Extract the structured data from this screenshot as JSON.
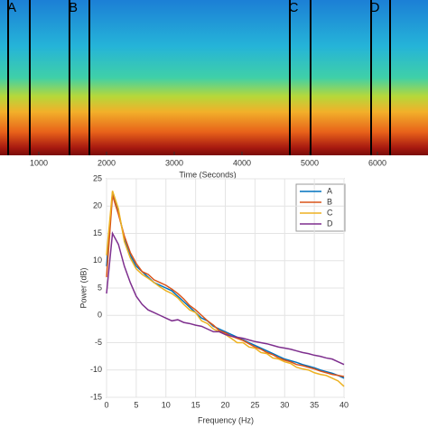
{
  "chart_data": [
    {
      "type": "spectrogram",
      "xlabel": "Time (Seconds)",
      "xlim": [
        427,
        6747
      ],
      "xticks": [
        1000,
        2000,
        3000,
        4000,
        5000,
        6000
      ],
      "markers": [
        {
          "label": "A",
          "start": 547,
          "end": 867
        },
        {
          "label": "B",
          "start": 1453,
          "end": 1747
        },
        {
          "label": "C",
          "start": 4707,
          "end": 5013
        },
        {
          "label": "D",
          "start": 5907,
          "end": 6187
        }
      ],
      "marker_color": "#000000"
    },
    {
      "type": "line",
      "xlabel": "Frequency (Hz)",
      "ylabel": "Power (dB)",
      "xlim": [
        0,
        40
      ],
      "ylim": [
        -15,
        25
      ],
      "xticks": [
        0,
        5,
        10,
        15,
        20,
        25,
        30,
        35,
        40
      ],
      "yticks": [
        -15,
        -10,
        -5,
        0,
        5,
        10,
        15,
        20,
        25
      ],
      "grid": true,
      "legend": "northeast",
      "x": [
        0,
        1,
        2,
        3,
        4,
        5,
        6,
        7,
        8,
        9,
        10,
        11,
        12,
        13,
        14,
        15,
        16,
        17,
        18,
        19,
        20,
        21,
        22,
        23,
        24,
        25,
        26,
        27,
        28,
        29,
        30,
        31,
        32,
        33,
        34,
        35,
        36,
        37,
        38,
        39,
        40
      ],
      "series": [
        {
          "name": "A",
          "color": "#0072bd",
          "values": [
            9,
            22.5,
            19,
            14,
            11,
            9,
            8,
            7,
            6,
            5.5,
            5,
            4.5,
            3.5,
            2.5,
            1.5,
            0.5,
            -0.5,
            -1,
            -2,
            -2.5,
            -3,
            -3.5,
            -4,
            -4.5,
            -5,
            -5.5,
            -6,
            -6.5,
            -7,
            -7.5,
            -8,
            -8.3,
            -8.6,
            -9,
            -9.3,
            -9.6,
            -10,
            -10.3,
            -10.6,
            -11,
            -11.5
          ]
        },
        {
          "name": "B",
          "color": "#d95319",
          "values": [
            7,
            22,
            18.5,
            14.5,
            11.5,
            9.5,
            8,
            7.5,
            6.5,
            6,
            5.5,
            4.8,
            4,
            3,
            1.8,
            1,
            0,
            -1,
            -1.8,
            -2.8,
            -3.2,
            -3.8,
            -4.2,
            -4.6,
            -5.2,
            -5.8,
            -6.2,
            -6.8,
            -7.2,
            -7.8,
            -8.2,
            -8.5,
            -9,
            -9.2,
            -9.5,
            -9.8,
            -10.2,
            -10.5,
            -10.8,
            -11,
            -11.2
          ]
        },
        {
          "name": "C",
          "color": "#edb120",
          "values": [
            11,
            22.8,
            19.5,
            13.5,
            10.5,
            8.5,
            7.5,
            6.8,
            6,
            5.2,
            4.5,
            4,
            3.2,
            2,
            1,
            0.5,
            -1,
            -1.5,
            -2.5,
            -3,
            -3.5,
            -4.2,
            -5,
            -5,
            -5.8,
            -6,
            -6.8,
            -7,
            -7.8,
            -8,
            -8.5,
            -8.8,
            -9.5,
            -9.8,
            -10,
            -10.5,
            -10.8,
            -11,
            -11.5,
            -12,
            -13
          ]
        },
        {
          "name": "D",
          "color": "#7e2f8e",
          "values": [
            4,
            15,
            13,
            9,
            6,
            3.5,
            2,
            1,
            0.5,
            0,
            -0.5,
            -1,
            -0.8,
            -1.3,
            -1.5,
            -1.8,
            -2,
            -2.5,
            -3,
            -3,
            -3.5,
            -3.8,
            -4,
            -4.2,
            -4.5,
            -4.8,
            -5,
            -5.2,
            -5.5,
            -5.8,
            -6,
            -6.2,
            -6.5,
            -6.8,
            -7,
            -7.3,
            -7.5,
            -7.8,
            -8,
            -8.5,
            -9
          ]
        }
      ]
    }
  ]
}
